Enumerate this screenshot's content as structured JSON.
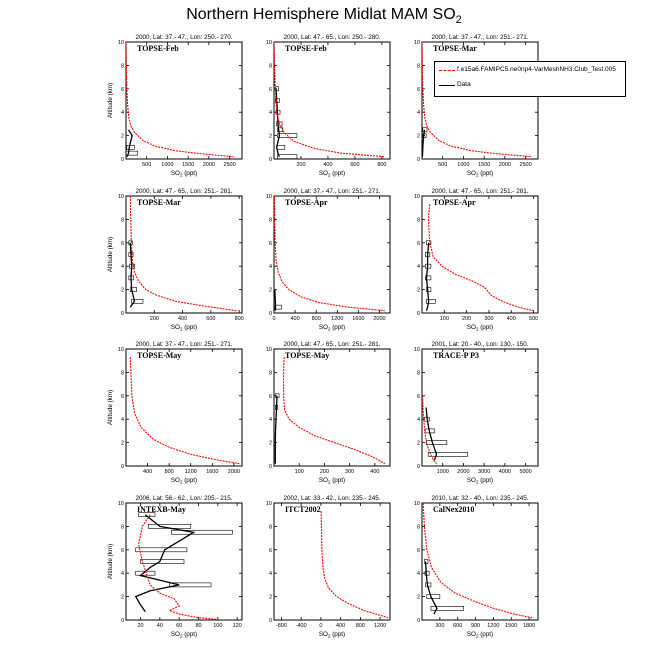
{
  "page": {
    "title": "Northern Hemisphere Midlat MAM SO",
    "title_sub": "2"
  },
  "legend": {
    "items": [
      {
        "label": "f.e15a6.FAMIPC5.ne0np4-VarMeshNH3.Club_Test.005",
        "color": "#ff0000",
        "style": "dashed"
      },
      {
        "label": "Data",
        "color": "#000000",
        "style": "solid"
      }
    ]
  },
  "chart_data": [
    {
      "type": "line",
      "header": "2000, Lat: 37.- 47., Lon: 250.- 270.",
      "campaign": "TOPSE-Feb",
      "xlabel": "SO",
      "xlabel_sub": "2",
      "xlabel_unit": " (ppt)",
      "ylabel": "Altitude (km)",
      "xlim": [
        0,
        2800
      ],
      "ylim": [
        0,
        10
      ],
      "xticks": [
        500,
        1000,
        1500,
        2000,
        2500
      ],
      "yticks": [
        0,
        2,
        4,
        6,
        8,
        10
      ],
      "model": [
        [
          0,
          10
        ],
        [
          8,
          8
        ],
        [
          20,
          6
        ],
        [
          40,
          4.5
        ],
        [
          70,
          3.5
        ],
        [
          120,
          2.8
        ],
        [
          200,
          2.3
        ],
        [
          400,
          1.6
        ],
        [
          700,
          1.1
        ],
        [
          1200,
          0.7
        ],
        [
          1800,
          0.45
        ],
        [
          2600,
          0.2
        ]
      ],
      "data": [
        [
          60,
          2.5
        ],
        [
          150,
          2
        ],
        [
          110,
          1.5
        ],
        [
          80,
          1
        ],
        [
          60,
          0.5
        ],
        [
          30,
          0.2
        ]
      ],
      "boxes": [
        [
          20,
          200,
          1
        ],
        [
          0,
          280,
          0.5
        ]
      ]
    },
    {
      "type": "line",
      "header": "2000, Lat: 47.- 65., Lon: 250.- 280.",
      "campaign": "TOPSE-Feb",
      "xlabel": "SO",
      "xlabel_sub": "2",
      "xlabel_unit": " (ppt)",
      "ylabel": "",
      "xlim": [
        0,
        860
      ],
      "ylim": [
        0,
        10
      ],
      "xticks": [
        200,
        400,
        600,
        800
      ],
      "yticks": [
        0,
        2,
        4,
        6,
        8,
        10
      ],
      "model": [
        [
          0,
          10
        ],
        [
          4,
          8
        ],
        [
          10,
          6
        ],
        [
          20,
          4
        ],
        [
          40,
          3
        ],
        [
          80,
          2.2
        ],
        [
          150,
          1.5
        ],
        [
          300,
          0.9
        ],
        [
          500,
          0.5
        ],
        [
          820,
          0.2
        ]
      ],
      "data": [
        [
          15,
          6
        ],
        [
          20,
          5
        ],
        [
          25,
          4
        ],
        [
          30,
          3
        ],
        [
          35,
          2.5
        ],
        [
          40,
          2
        ],
        [
          30,
          1.5
        ],
        [
          20,
          1
        ],
        [
          30,
          0.5
        ],
        [
          40,
          0.2
        ]
      ],
      "boxes": [
        [
          10,
          35,
          6
        ],
        [
          10,
          40,
          5
        ],
        [
          15,
          45,
          4
        ],
        [
          20,
          60,
          3
        ],
        [
          25,
          65,
          2.5
        ],
        [
          25,
          170,
          2
        ],
        [
          20,
          80,
          1
        ],
        [
          25,
          170,
          0.2
        ]
      ]
    },
    {
      "type": "line",
      "header": "2000, Lat: 37.- 47., Lon: 251.- 271.",
      "campaign": "TOPSE-Mar",
      "xlabel": "SO",
      "xlabel_sub": "2",
      "xlabel_unit": " (ppt)",
      "ylabel": "",
      "xlim": [
        0,
        2800
      ],
      "ylim": [
        0,
        10
      ],
      "xticks": [
        500,
        1000,
        1500,
        2000,
        2500
      ],
      "yticks": [
        0,
        2,
        4,
        6,
        8,
        10
      ],
      "model": [
        [
          0,
          10
        ],
        [
          8,
          8
        ],
        [
          20,
          6
        ],
        [
          40,
          4.5
        ],
        [
          70,
          3.5
        ],
        [
          120,
          2.8
        ],
        [
          200,
          2.3
        ],
        [
          400,
          1.6
        ],
        [
          700,
          1.1
        ],
        [
          1200,
          0.7
        ],
        [
          1800,
          0.45
        ],
        [
          2650,
          0.2
        ]
      ],
      "data": [
        [
          60,
          2.5
        ],
        [
          40,
          2
        ],
        [
          30,
          1.5
        ],
        [
          20,
          1
        ],
        [
          15,
          0.5
        ],
        [
          10,
          0.2
        ]
      ],
      "boxes": [
        [
          20,
          120,
          2.5
        ],
        [
          15,
          100,
          2
        ]
      ]
    },
    {
      "type": "line",
      "header": "2000, Lat: 47.- 65., Lon: 251.- 281.",
      "campaign": "TOPSE-Mar",
      "xlabel": "SO",
      "xlabel_sub": "2",
      "xlabel_unit": " (ppt)",
      "ylabel": "Altitude (km)",
      "xlim": [
        0,
        820
      ],
      "ylim": [
        0,
        10
      ],
      "xticks": [
        200,
        400,
        600,
        800
      ],
      "yticks": [
        0,
        2,
        4,
        6,
        8,
        10
      ],
      "model": [
        [
          30,
          10
        ],
        [
          34,
          8
        ],
        [
          38,
          6
        ],
        [
          45,
          4.5
        ],
        [
          60,
          3.5
        ],
        [
          90,
          2.7
        ],
        [
          140,
          2
        ],
        [
          220,
          1.5
        ],
        [
          350,
          1
        ],
        [
          550,
          0.6
        ],
        [
          780,
          0.2
        ]
      ],
      "data": [
        [
          30,
          6
        ],
        [
          35,
          5
        ],
        [
          40,
          4
        ],
        [
          35,
          3
        ],
        [
          40,
          2
        ],
        [
          60,
          1
        ],
        [
          30,
          0.5
        ]
      ],
      "boxes": [
        [
          20,
          45,
          6
        ],
        [
          20,
          50,
          5
        ],
        [
          25,
          60,
          4
        ],
        [
          20,
          55,
          3
        ],
        [
          30,
          75,
          2
        ],
        [
          40,
          120,
          1
        ]
      ]
    },
    {
      "type": "line",
      "header": "2000, Lat: 37.- 47., Lon: 251.- 271.",
      "campaign": "TOPSE-Apr",
      "xlabel": "SO",
      "xlabel_sub": "2",
      "xlabel_unit": " (ppt)",
      "ylabel": "",
      "xlim": [
        0,
        2200
      ],
      "ylim": [
        0,
        10
      ],
      "xticks": [
        0,
        400,
        800,
        1200,
        1600,
        2000
      ],
      "yticks": [
        0,
        2,
        4,
        6,
        8,
        10
      ],
      "model": [
        [
          10,
          10
        ],
        [
          14,
          8
        ],
        [
          20,
          6
        ],
        [
          40,
          4.5
        ],
        [
          80,
          3.5
        ],
        [
          150,
          2.7
        ],
        [
          280,
          2
        ],
        [
          500,
          1.4
        ],
        [
          850,
          0.9
        ],
        [
          1400,
          0.5
        ],
        [
          2100,
          0.2
        ]
      ],
      "data": [
        [
          15,
          2
        ],
        [
          20,
          1.5
        ],
        [
          25,
          1
        ],
        [
          30,
          0.5
        ],
        [
          25,
          0.2
        ]
      ],
      "boxes": [
        [
          10,
          140,
          0.5
        ]
      ]
    },
    {
      "type": "line",
      "header": "2000, Lat: 47.- 65., Lon: 251.- 281.",
      "campaign": "TOPSE-Apr",
      "xlabel": "SO",
      "xlabel_sub": "2",
      "xlabel_unit": " (ppt)",
      "ylabel": "",
      "xlim": [
        0,
        520
      ],
      "ylim": [
        0,
        10
      ],
      "xticks": [
        100,
        200,
        300,
        400,
        500
      ],
      "yticks": [
        0,
        2,
        4,
        6,
        8,
        10
      ],
      "model": [
        [
          35,
          9.3
        ],
        [
          30,
          8.5
        ],
        [
          30,
          7.5
        ],
        [
          35,
          6
        ],
        [
          50,
          4.8
        ],
        [
          90,
          4
        ],
        [
          150,
          3.3
        ],
        [
          230,
          2.7
        ],
        [
          280,
          2.2
        ],
        [
          310,
          1.5
        ],
        [
          360,
          1
        ],
        [
          430,
          0.5
        ],
        [
          500,
          0.2
        ]
      ],
      "data": [
        [
          30,
          6
        ],
        [
          25,
          5
        ],
        [
          25,
          4
        ],
        [
          20,
          3
        ],
        [
          25,
          2
        ],
        [
          30,
          1
        ],
        [
          25,
          0.5
        ],
        [
          20,
          0.2
        ]
      ],
      "boxes": [
        [
          20,
          40,
          6
        ],
        [
          15,
          35,
          5
        ],
        [
          15,
          40,
          4
        ],
        [
          15,
          40,
          3
        ],
        [
          20,
          40,
          2
        ],
        [
          20,
          60,
          1
        ]
      ]
    },
    {
      "type": "line",
      "header": "2000, Lat: 37.- 47., Lon: 251.- 271.",
      "campaign": "TOPSE-May",
      "xlabel": "SO",
      "xlabel_sub": "2",
      "xlabel_unit": " (ppt)",
      "ylabel": "Altitude (km)",
      "xlim": [
        0,
        2150
      ],
      "ylim": [
        0,
        10
      ],
      "xticks": [
        400,
        800,
        1200,
        1600,
        2000
      ],
      "yticks": [
        0,
        2,
        4,
        6,
        8,
        10
      ],
      "model": [
        [
          80,
          9.3
        ],
        [
          90,
          8
        ],
        [
          110,
          6
        ],
        [
          160,
          4.5
        ],
        [
          280,
          3.3
        ],
        [
          500,
          2.3
        ],
        [
          800,
          1.6
        ],
        [
          1200,
          1
        ],
        [
          1600,
          0.6
        ],
        [
          2100,
          0.2
        ]
      ],
      "data": [],
      "boxes": []
    },
    {
      "type": "line",
      "header": "2000, Lat: 47.- 65., Lon: 251.- 281.",
      "campaign": "TOPSE-May",
      "xlabel": "SO",
      "xlabel_sub": "2",
      "xlabel_unit": " (ppt)",
      "ylabel": "",
      "xlim": [
        0,
        460
      ],
      "ylim": [
        0,
        10
      ],
      "xticks": [
        100,
        200,
        300,
        400
      ],
      "yticks": [
        0,
        2,
        4,
        6,
        8,
        10
      ],
      "model": [
        [
          40,
          9.3
        ],
        [
          38,
          8
        ],
        [
          38,
          6
        ],
        [
          42,
          4.8
        ],
        [
          60,
          4
        ],
        [
          100,
          3.3
        ],
        [
          160,
          2.6
        ],
        [
          240,
          2
        ],
        [
          320,
          1.4
        ],
        [
          390,
          0.8
        ],
        [
          440,
          0.2
        ]
      ],
      "data": [
        [
          12,
          6
        ],
        [
          10,
          5
        ],
        [
          8,
          4
        ],
        [
          6,
          3
        ],
        [
          5,
          2
        ],
        [
          5,
          1
        ],
        [
          5,
          0.2
        ]
      ],
      "boxes": [
        [
          5,
          20,
          6
        ],
        [
          5,
          15,
          5
        ]
      ]
    },
    {
      "type": "line",
      "header": "2001, Lat: 20.- 40., Lon: 130.- 150.",
      "campaign": "TRACE-P P3",
      "xlabel": "SO",
      "xlabel_sub": "2",
      "xlabel_unit": " (ppt)",
      "ylabel": "",
      "xlim": [
        0,
        5600
      ],
      "ylim": [
        0,
        10
      ],
      "xticks": [
        1000,
        2000,
        3000,
        4000,
        5000
      ],
      "yticks": [
        0,
        2,
        4,
        6,
        8,
        10
      ],
      "model": [
        [
          30,
          6
        ],
        [
          50,
          5
        ],
        [
          80,
          4
        ],
        [
          130,
          3
        ],
        [
          200,
          2.2
        ],
        [
          300,
          1.5
        ],
        [
          420,
          1
        ],
        [
          550,
          0.5
        ],
        [
          700,
          0.2
        ]
      ],
      "data": [
        [
          200,
          5
        ],
        [
          250,
          4
        ],
        [
          350,
          3
        ],
        [
          500,
          2
        ],
        [
          700,
          1
        ],
        [
          600,
          0.5
        ]
      ],
      "boxes": [
        [
          100,
          350,
          4
        ],
        [
          150,
          600,
          3
        ],
        [
          200,
          1200,
          2
        ],
        [
          300,
          2200,
          1
        ]
      ]
    },
    {
      "type": "line",
      "header": "2006, Lat: 56.- 62., Lon: 205.- 215.",
      "campaign": "INTEXB-May",
      "xlabel": "SO",
      "xlabel_sub": "2",
      "xlabel_unit": " (ppt)",
      "ylabel": "Altitude (km)",
      "xlim": [
        5,
        125
      ],
      "ylim": [
        0,
        10
      ],
      "xticks": [
        20,
        40,
        60,
        80,
        100,
        120
      ],
      "yticks": [
        0,
        2,
        4,
        6,
        8,
        10
      ],
      "model": [
        [
          30,
          9
        ],
        [
          22,
          8
        ],
        [
          18,
          6.5
        ],
        [
          22,
          5
        ],
        [
          26,
          4
        ],
        [
          30,
          3
        ],
        [
          40,
          2.3
        ],
        [
          55,
          1.8
        ],
        [
          60,
          1.2
        ],
        [
          50,
          0.8
        ],
        [
          60,
          0.5
        ],
        [
          80,
          0.2
        ],
        [
          100,
          0.05
        ]
      ],
      "data": [
        [
          25,
          9
        ],
        [
          40,
          8
        ],
        [
          75,
          7.5
        ],
        [
          45,
          6
        ],
        [
          40,
          5
        ],
        [
          30,
          4.5
        ],
        [
          20,
          3.8
        ],
        [
          60,
          3
        ],
        [
          30,
          2.5
        ],
        [
          15,
          2
        ],
        [
          20,
          1.3
        ],
        [
          25,
          0.7
        ]
      ],
      "boxes": [
        [
          18,
          35,
          9
        ],
        [
          28,
          72,
          8
        ],
        [
          52,
          115,
          7.5
        ],
        [
          15,
          68,
          6
        ],
        [
          20,
          65,
          5
        ],
        [
          15,
          35,
          4
        ],
        [
          50,
          93,
          3
        ]
      ]
    },
    {
      "type": "line",
      "header": "2002, Lat: 33.- 42., Lon: 235.- 245.",
      "campaign": "ITCT2002",
      "xlabel": "SO",
      "xlabel_sub": "2",
      "xlabel_unit": " (ppt)",
      "ylabel": "",
      "xlim": [
        -950,
        1400
      ],
      "ylim": [
        0,
        10
      ],
      "xticks": [
        -800,
        -400,
        0,
        400,
        800,
        1200
      ],
      "yticks": [
        0,
        2,
        4,
        6,
        8,
        10
      ],
      "model": [
        [
          5,
          9.3
        ],
        [
          10,
          8
        ],
        [
          20,
          6
        ],
        [
          40,
          4.5
        ],
        [
          80,
          3.5
        ],
        [
          160,
          2.7
        ],
        [
          320,
          2
        ],
        [
          560,
          1.4
        ],
        [
          880,
          0.8
        ],
        [
          1200,
          0.4
        ],
        [
          1360,
          0.2
        ]
      ],
      "data": [],
      "boxes": []
    },
    {
      "type": "line",
      "header": "2010, Lat: 32.- 40., Lon: 235.- 245.",
      "campaign": "CalNex2010",
      "xlabel": "SO",
      "xlabel_sub": "2",
      "xlabel_unit": " (ppt)",
      "ylabel": "",
      "xlim": [
        0,
        1950
      ],
      "ylim": [
        0,
        10
      ],
      "xticks": [
        300,
        600,
        900,
        1200,
        1500,
        1800
      ],
      "yticks": [
        0,
        2,
        4,
        6,
        8,
        10
      ],
      "model": [
        [
          20,
          10
        ],
        [
          40,
          8
        ],
        [
          80,
          6
        ],
        [
          160,
          4.5
        ],
        [
          320,
          3.2
        ],
        [
          560,
          2.3
        ],
        [
          880,
          1.6
        ],
        [
          1200,
          1
        ],
        [
          1550,
          0.5
        ],
        [
          1850,
          0.2
        ]
      ],
      "data": [
        [
          60,
          5
        ],
        [
          70,
          4
        ],
        [
          90,
          3
        ],
        [
          150,
          2
        ],
        [
          250,
          1
        ],
        [
          200,
          0.5
        ]
      ],
      "boxes": [
        [
          40,
          100,
          5
        ],
        [
          50,
          120,
          4
        ],
        [
          60,
          150,
          3
        ],
        [
          80,
          300,
          2
        ],
        [
          150,
          700,
          1
        ]
      ]
    }
  ]
}
